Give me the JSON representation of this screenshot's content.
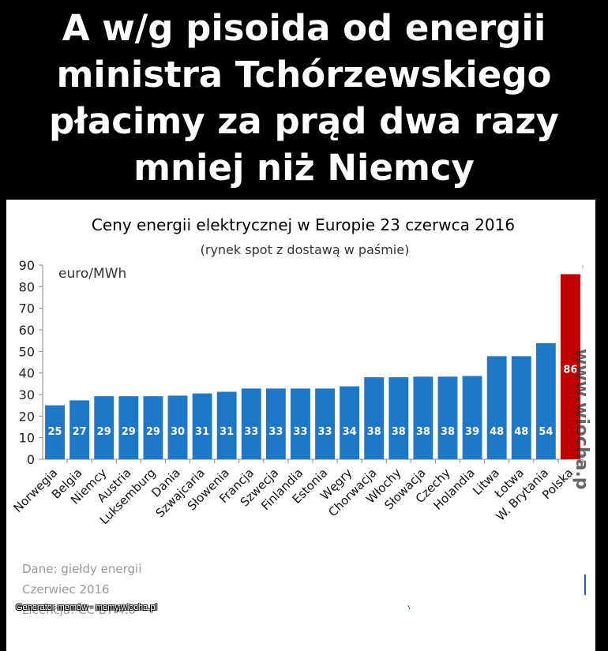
{
  "meme": {
    "title": "A w/g pisoida od energii\nministra Tchórzewskiego\npłacimy za prąd dwa razy\nmniej niż Niemcy",
    "footer": "Generator memów - memy.wiocha.pl",
    "watermark": "www.wiocha.pl"
  },
  "source_note": [
    "Dane: giełdy energii",
    "Czerwiec 2016",
    "Licencja: CC-BY 4.0"
  ],
  "chart_data": {
    "type": "bar",
    "title": "Ceny energii elektrycznej w Europie 23 czerwca 2016",
    "subtitle": "(rynek spot z dostawą w paśmie)",
    "unit_label": "euro/MWh",
    "ylim": [
      0,
      90
    ],
    "yticks": [
      0,
      10,
      20,
      30,
      40,
      50,
      60,
      70,
      80,
      90
    ],
    "categories": [
      "Norwegia",
      "Belgia",
      "Niemcy",
      "Austria",
      "Luksemburg",
      "Dania",
      "Szwajcaria",
      "Słowenia",
      "Francja",
      "Szwecja",
      "Finlandia",
      "Estonia",
      "Węgry",
      "Chorwacja",
      "Włochy",
      "Słowacja",
      "Czechy",
      "Holandia",
      "Litwa",
      "Łotwa",
      "W. Brytania",
      "Polska"
    ],
    "values": [
      25,
      27.3,
      29.2,
      29.2,
      29.2,
      29.5,
      30.5,
      31.3,
      32.8,
      32.8,
      32.8,
      32.8,
      33.8,
      38,
      38,
      38.3,
      38.3,
      38.6,
      47.8,
      47.8,
      53.8,
      85.8
    ],
    "data_labels": [
      "25",
      "27",
      "29",
      "29",
      "29",
      "30",
      "31",
      "31",
      "33",
      "33",
      "33",
      "33",
      "34",
      "38",
      "38",
      "38",
      "38",
      "39",
      "48",
      "48",
      "54",
      "86"
    ],
    "colors": {
      "default": "#1f77c8",
      "highlight": "#c00000"
    },
    "highlight": "Polska",
    "grid": false,
    "legend": "none"
  }
}
